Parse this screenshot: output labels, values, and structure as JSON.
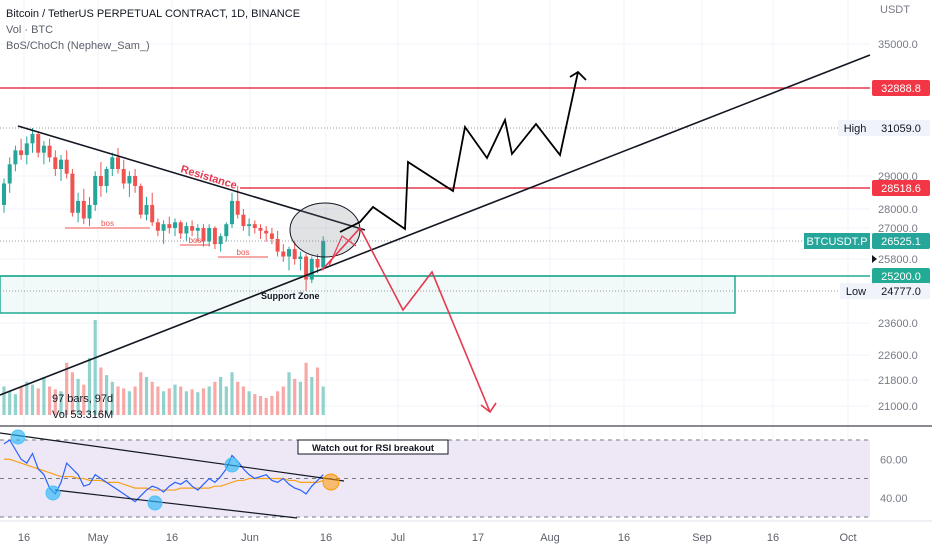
{
  "header": {
    "title": "Bitcoin / TetherUS PERPETUAL CONTRACT, 1D, BINANCE",
    "volume_label": "Vol · BTC",
    "indicator_label": "BoS/ChoCh (Nephew_Sam_)"
  },
  "price_axis": {
    "currency": "USDT",
    "ticks": [
      "35000.0",
      "29000.0",
      "28000.0",
      "27000.0",
      "25800.0",
      "23600.0",
      "22600.0",
      "21800.0",
      "21000.0"
    ]
  },
  "rsi_axis": {
    "ticks": [
      "60.00",
      "40.00"
    ]
  },
  "time_axis": {
    "labels": [
      "16",
      "May",
      "16",
      "Jun",
      "16",
      "Jul",
      "17",
      "Aug",
      "16",
      "Sep",
      "16",
      "Oct"
    ]
  },
  "price_tags": {
    "level_high": "32888.8",
    "level_mid": "28518.6",
    "high_label": "High",
    "high_value": "31059.0",
    "symbol": "BTCUSDT.P",
    "last_price": "26525.1",
    "support_top": "25200.0",
    "low_label": "Low",
    "low_value": "24777.0"
  },
  "annotations": {
    "resistance": "Resistance",
    "support_zone": "Support Zone",
    "bos": "bos",
    "rsi_note": "Watch out for RSI breakout",
    "bars_info": "97 bars, 97d",
    "vol_info": "Vol 53.316M"
  },
  "colors": {
    "up": "#26a69a",
    "down": "#ef5350",
    "resistance": "#e53950",
    "support": "#22ab94",
    "rsi": "#2962ff",
    "rsi_ma": "#f7a21b",
    "rsi_band": "#ede7f6"
  },
  "chart_data": {
    "type": "candlestick",
    "symbol": "BTCUSDT.P",
    "timeframe": "1D",
    "x_ticks": [
      "16",
      "May",
      "16",
      "Jun",
      "16",
      "Jul",
      "17",
      "Aug",
      "16",
      "Sep",
      "16",
      "Oct"
    ],
    "y_ticks": [
      35000,
      29000,
      28000,
      27000,
      25800,
      23600,
      22600,
      21800,
      21000
    ],
    "horizontal_levels": [
      32888.8,
      28518.6
    ],
    "support_zone": [
      24777.0,
      25200.0
    ],
    "period_high": 31059.0,
    "period_low": 24777.0,
    "last_price": 26525.1,
    "candles_ohlc": [
      [
        28100,
        28900,
        27800,
        28700
      ],
      [
        28700,
        29800,
        28400,
        29500
      ],
      [
        29500,
        30300,
        29200,
        30100
      ],
      [
        30100,
        30600,
        29700,
        29900
      ],
      [
        29900,
        30700,
        29500,
        30400
      ],
      [
        30400,
        31059,
        30000,
        30800
      ],
      [
        30800,
        30900,
        29800,
        30000
      ],
      [
        30000,
        30500,
        29500,
        30300
      ],
      [
        30300,
        30600,
        29600,
        29800
      ],
      [
        29800,
        30100,
        29000,
        29300
      ],
      [
        29300,
        29900,
        28800,
        29700
      ],
      [
        29700,
        30100,
        28900,
        29100
      ],
      [
        29100,
        29300,
        27600,
        27800
      ],
      [
        27800,
        28400,
        27300,
        28200
      ],
      [
        28200,
        28500,
        27200,
        27500
      ],
      [
        27500,
        28300,
        27100,
        28100
      ],
      [
        28100,
        29200,
        27900,
        29000
      ],
      [
        29000,
        29600,
        28300,
        28600
      ],
      [
        28600,
        29400,
        28400,
        29300
      ],
      [
        29300,
        30000,
        29000,
        29800
      ],
      [
        29800,
        30200,
        29100,
        29300
      ],
      [
        29300,
        29700,
        28500,
        28700
      ],
      [
        28700,
        29200,
        28300,
        29000
      ],
      [
        29000,
        29300,
        28400,
        28600
      ],
      [
        28600,
        28700,
        27500,
        27700
      ],
      [
        27700,
        28300,
        27400,
        28100
      ],
      [
        28100,
        28400,
        27100,
        27300
      ],
      [
        27300,
        27500,
        26700,
        26900
      ],
      [
        26900,
        27400,
        26400,
        27200
      ],
      [
        27200,
        27600,
        26800,
        27000
      ],
      [
        27000,
        27500,
        26700,
        27300
      ],
      [
        27300,
        27400,
        26600,
        26800
      ],
      [
        26800,
        27300,
        26500,
        27100
      ],
      [
        27100,
        27400,
        26700,
        26900
      ],
      [
        26900,
        27200,
        26500,
        27000
      ],
      [
        27000,
        27200,
        26300,
        26500
      ],
      [
        26500,
        27200,
        26300,
        27000
      ],
      [
        27000,
        27100,
        26200,
        26400
      ],
      [
        26400,
        26800,
        26100,
        26700
      ],
      [
        26700,
        27300,
        26500,
        27200
      ],
      [
        27200,
        28400,
        27000,
        28200
      ],
      [
        28200,
        28600,
        27500,
        27700
      ],
      [
        27700,
        28000,
        26900,
        27100
      ],
      [
        27100,
        27500,
        26700,
        27200
      ],
      [
        27200,
        27400,
        26800,
        27000
      ],
      [
        27000,
        27200,
        26600,
        26900
      ],
      [
        26900,
        27100,
        26500,
        26800
      ],
      [
        26800,
        27000,
        26400,
        26600
      ],
      [
        26600,
        26900,
        25900,
        26100
      ],
      [
        26100,
        26400,
        25700,
        25900
      ],
      [
        25900,
        26300,
        25400,
        26200
      ],
      [
        26200,
        26500,
        25600,
        25800
      ],
      [
        25800,
        26100,
        25400,
        25900
      ],
      [
        25900,
        26000,
        24777,
        25100
      ],
      [
        25100,
        25900,
        25000,
        25800
      ],
      [
        25800,
        26000,
        25300,
        25500
      ],
      [
        25500,
        26700,
        25400,
        26525
      ]
    ],
    "volume_bars_relative": [
      0.3,
      0.25,
      0.22,
      0.3,
      0.35,
      0.32,
      0.28,
      0.4,
      0.3,
      0.27,
      0.25,
      0.55,
      0.45,
      0.38,
      0.32,
      0.6,
      1.0,
      0.5,
      0.42,
      0.35,
      0.3,
      0.28,
      0.25,
      0.3,
      0.45,
      0.4,
      0.35,
      0.3,
      0.25,
      0.28,
      0.32,
      0.3,
      0.25,
      0.27,
      0.24,
      0.28,
      0.3,
      0.35,
      0.4,
      0.3,
      0.45,
      0.35,
      0.3,
      0.25,
      0.22,
      0.2,
      0.18,
      0.2,
      0.25,
      0.3,
      0.45,
      0.38,
      0.35,
      0.55,
      0.4,
      0.5,
      0.3
    ],
    "rsi": {
      "values": [
        68,
        70,
        65,
        60,
        58,
        63,
        55,
        52,
        45,
        42,
        48,
        58,
        55,
        52,
        46,
        47,
        52,
        50,
        48,
        46,
        44,
        42,
        40,
        38,
        41,
        44,
        46,
        45,
        43,
        46,
        48,
        47,
        49,
        46,
        44,
        47,
        50,
        48,
        51,
        55,
        62,
        59,
        55,
        52,
        50,
        51,
        52,
        49,
        48,
        50,
        47,
        45,
        44,
        42,
        46,
        49,
        52
      ],
      "ma": [
        60,
        60,
        59,
        58,
        57,
        56,
        55,
        54,
        53,
        52,
        51,
        51,
        51,
        50,
        50,
        49,
        49,
        49,
        48,
        48,
        48,
        47,
        46,
        45,
        45,
        45,
        44,
        44,
        44,
        44,
        44,
        45,
        45,
        45,
        45,
        45,
        45,
        46,
        46,
        47,
        48,
        49,
        49,
        50,
        50,
        50,
        50,
        50,
        50,
        50,
        49,
        49,
        48,
        48,
        48,
        48,
        49
      ],
      "band": [
        30,
        70
      ],
      "y_ticks": [
        60,
        40
      ]
    }
  }
}
